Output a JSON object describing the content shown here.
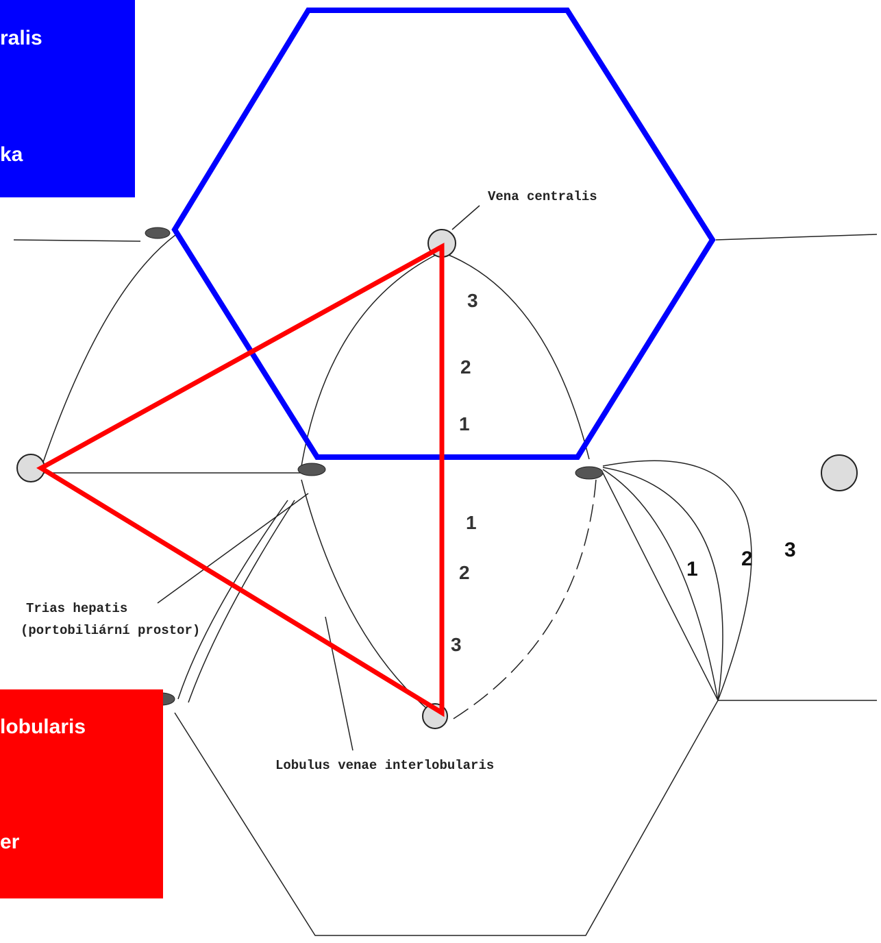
{
  "blue_label": {
    "lines": [
      "ralis",
      "ka"
    ]
  },
  "red_label": {
    "lines": [
      "lobularis",
      "er"
    ]
  },
  "annotations": {
    "vena_centralis": "Vena centralis",
    "trias_hepatis": [
      "Trias hepatis",
      "(portobiliární prostor)"
    ],
    "lobulus": "Lobulus venae interlobularis"
  },
  "zones": {
    "outer": [
      "1",
      "2",
      "3"
    ],
    "upper": [
      "3",
      "2",
      "1"
    ],
    "lower": [
      "1",
      "2",
      "3"
    ]
  }
}
